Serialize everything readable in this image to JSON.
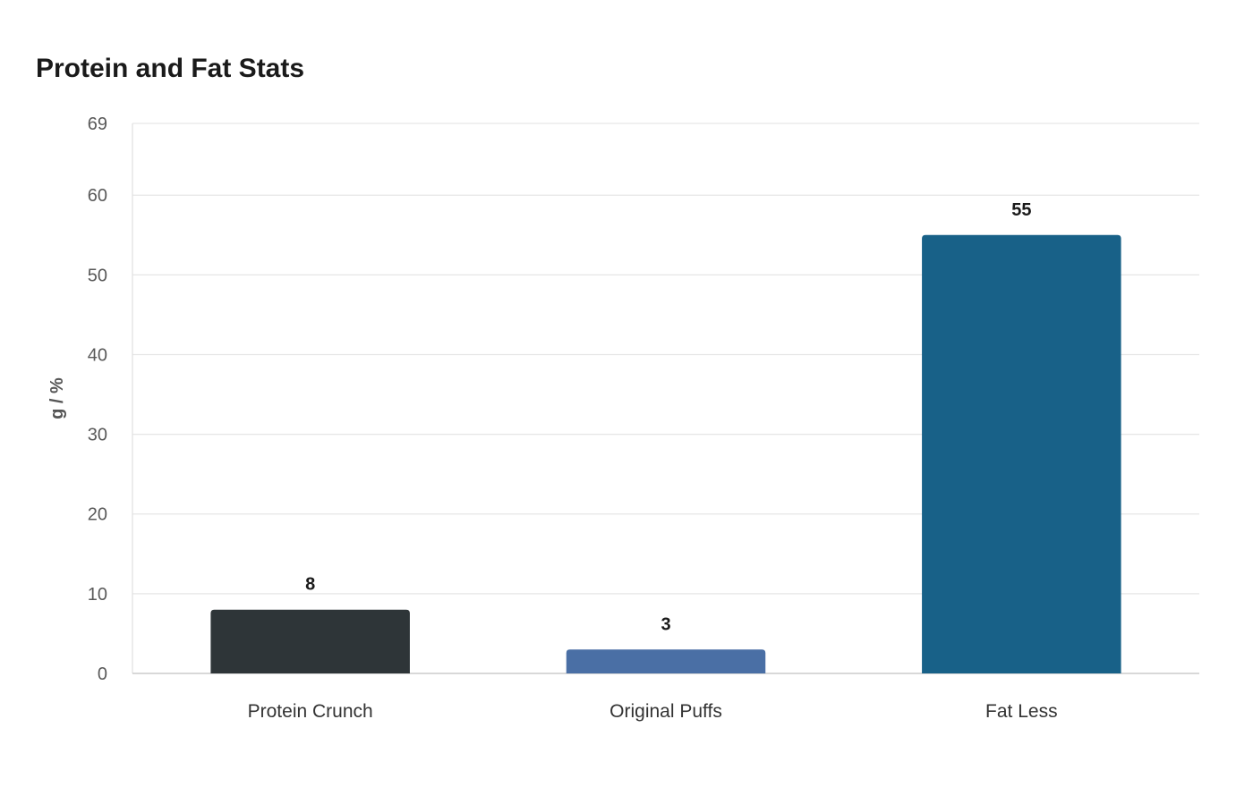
{
  "chart_data": {
    "type": "bar",
    "title": "Protein and Fat Stats",
    "xlabel": "",
    "ylabel": "g / %",
    "categories": [
      "Protein Crunch",
      "Original Puffs",
      "Fat Less"
    ],
    "values": [
      8,
      3,
      55
    ],
    "value_labels": [
      "8",
      "3",
      "55"
    ],
    "colors": [
      "#2e3538",
      "#4a6fa5",
      "#186188"
    ],
    "ylim": [
      0,
      69
    ],
    "yticks": [
      0,
      10,
      20,
      30,
      40,
      50,
      60,
      69
    ],
    "grid": true,
    "legend": "none"
  }
}
